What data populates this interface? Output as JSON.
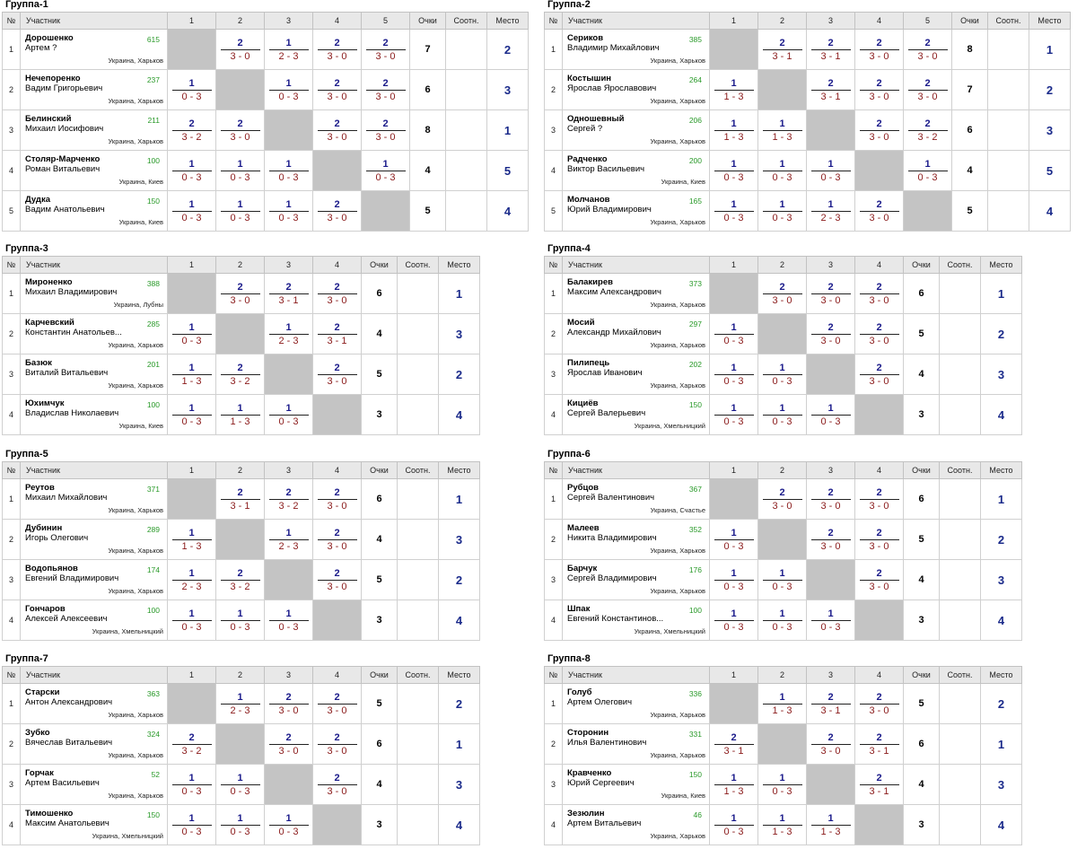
{
  "headers": {
    "no": "№",
    "player": "Участник",
    "points": "Очки",
    "ratio": "Соотн.",
    "place": "Место"
  },
  "groups": [
    {
      "title": "Группа-1",
      "cols": [
        "1",
        "2",
        "3",
        "4",
        "5"
      ],
      "rows": [
        {
          "no": "1",
          "surname": "Дорошенко",
          "name": "Артем ?",
          "rating": "615",
          "city": "Украина, Харьков",
          "cells": [
            null,
            {
              "w": "2",
              "s": "3 - 0"
            },
            {
              "w": "1",
              "s": "2 - 3"
            },
            {
              "w": "2",
              "s": "3 - 0"
            },
            {
              "w": "2",
              "s": "3 - 0"
            }
          ],
          "points": "7",
          "place": "2"
        },
        {
          "no": "2",
          "surname": "Нечепоренко",
          "name": "Вадим Григорьевич",
          "rating": "237",
          "city": "Украина, Харьков",
          "cells": [
            {
              "w": "1",
              "s": "0 - 3"
            },
            null,
            {
              "w": "1",
              "s": "0 - 3"
            },
            {
              "w": "2",
              "s": "3 - 0"
            },
            {
              "w": "2",
              "s": "3 - 0"
            }
          ],
          "points": "6",
          "place": "3"
        },
        {
          "no": "3",
          "surname": "Белинский",
          "name": "Михаил Иосифович",
          "rating": "211",
          "city": "Украина, Харьков",
          "cells": [
            {
              "w": "2",
              "s": "3 - 2"
            },
            {
              "w": "2",
              "s": "3 - 0"
            },
            null,
            {
              "w": "2",
              "s": "3 - 0"
            },
            {
              "w": "2",
              "s": "3 - 0"
            }
          ],
          "points": "8",
          "place": "1"
        },
        {
          "no": "4",
          "surname": "Столяр-Марченко",
          "name": "Роман Витальевич",
          "rating": "100",
          "city": "Украина, Киев",
          "cells": [
            {
              "w": "1",
              "s": "0 - 3"
            },
            {
              "w": "1",
              "s": "0 - 3"
            },
            {
              "w": "1",
              "s": "0 - 3"
            },
            null,
            {
              "w": "1",
              "s": "0 - 3"
            }
          ],
          "points": "4",
          "place": "5"
        },
        {
          "no": "5",
          "surname": "Дудка",
          "name": "Вадим Анатольевич",
          "rating": "150",
          "city": "Украина, Киев",
          "cells": [
            {
              "w": "1",
              "s": "0 - 3"
            },
            {
              "w": "1",
              "s": "0 - 3"
            },
            {
              "w": "1",
              "s": "0 - 3"
            },
            {
              "w": "2",
              "s": "3 - 0"
            },
            null
          ],
          "points": "5",
          "place": "4"
        }
      ]
    },
    {
      "title": "Группа-2",
      "cols": [
        "1",
        "2",
        "3",
        "4",
        "5"
      ],
      "rows": [
        {
          "no": "1",
          "surname": "Сериков",
          "name": "Владимир Михайлович",
          "rating": "385",
          "city": "Украина, Харьков",
          "cells": [
            null,
            {
              "w": "2",
              "s": "3 - 1"
            },
            {
              "w": "2",
              "s": "3 - 1"
            },
            {
              "w": "2",
              "s": "3 - 0"
            },
            {
              "w": "2",
              "s": "3 - 0"
            }
          ],
          "points": "8",
          "place": "1"
        },
        {
          "no": "2",
          "surname": "Костышин",
          "name": "Ярослав Ярославович",
          "rating": "264",
          "city": "Украина, Харьков",
          "cells": [
            {
              "w": "1",
              "s": "1 - 3"
            },
            null,
            {
              "w": "2",
              "s": "3 - 1"
            },
            {
              "w": "2",
              "s": "3 - 0"
            },
            {
              "w": "2",
              "s": "3 - 0"
            }
          ],
          "points": "7",
          "place": "2"
        },
        {
          "no": "3",
          "surname": "Одношевный",
          "name": "Сергей ?",
          "rating": "206",
          "city": "Украина, Харьков",
          "cells": [
            {
              "w": "1",
              "s": "1 - 3"
            },
            {
              "w": "1",
              "s": "1 - 3"
            },
            null,
            {
              "w": "2",
              "s": "3 - 0"
            },
            {
              "w": "2",
              "s": "3 - 2"
            }
          ],
          "points": "6",
          "place": "3"
        },
        {
          "no": "4",
          "surname": "Радченко",
          "name": "Виктор Васильевич",
          "rating": "200",
          "city": "Украина, Киев",
          "cells": [
            {
              "w": "1",
              "s": "0 - 3"
            },
            {
              "w": "1",
              "s": "0 - 3"
            },
            {
              "w": "1",
              "s": "0 - 3"
            },
            null,
            {
              "w": "1",
              "s": "0 - 3"
            }
          ],
          "points": "4",
          "place": "5"
        },
        {
          "no": "5",
          "surname": "Молчанов",
          "name": "Юрий Владимирович",
          "rating": "165",
          "city": "Украина, Харьков",
          "cells": [
            {
              "w": "1",
              "s": "0 - 3"
            },
            {
              "w": "1",
              "s": "0 - 3"
            },
            {
              "w": "1",
              "s": "2 - 3"
            },
            {
              "w": "2",
              "s": "3 - 0"
            },
            null
          ],
          "points": "5",
          "place": "4"
        }
      ]
    },
    {
      "title": "Группа-3",
      "cols": [
        "1",
        "2",
        "3",
        "4"
      ],
      "rows": [
        {
          "no": "1",
          "surname": "Мироненко",
          "name": "Михаил Владимирович",
          "rating": "388",
          "city": "Украина, Лубны",
          "cells": [
            null,
            {
              "w": "2",
              "s": "3 - 0"
            },
            {
              "w": "2",
              "s": "3 - 1"
            },
            {
              "w": "2",
              "s": "3 - 0"
            }
          ],
          "points": "6",
          "place": "1"
        },
        {
          "no": "2",
          "surname": "Карчевский",
          "name": "Константин Анатольев...",
          "rating": "285",
          "city": "Украина, Харьков",
          "cells": [
            {
              "w": "1",
              "s": "0 - 3"
            },
            null,
            {
              "w": "1",
              "s": "2 - 3"
            },
            {
              "w": "2",
              "s": "3 - 1"
            }
          ],
          "points": "4",
          "place": "3"
        },
        {
          "no": "3",
          "surname": "Базюк",
          "name": "Виталий Витальевич",
          "rating": "201",
          "city": "Украина, Харьков",
          "cells": [
            {
              "w": "1",
              "s": "1 - 3"
            },
            {
              "w": "2",
              "s": "3 - 2"
            },
            null,
            {
              "w": "2",
              "s": "3 - 0"
            }
          ],
          "points": "5",
          "place": "2"
        },
        {
          "no": "4",
          "surname": "Юхимчук",
          "name": "Владислав Николаевич",
          "rating": "100",
          "city": "Украина, Киев",
          "cells": [
            {
              "w": "1",
              "s": "0 - 3"
            },
            {
              "w": "1",
              "s": "1 - 3"
            },
            {
              "w": "1",
              "s": "0 - 3"
            },
            null
          ],
          "points": "3",
          "place": "4"
        }
      ]
    },
    {
      "title": "Группа-4",
      "cols": [
        "1",
        "2",
        "3",
        "4"
      ],
      "rows": [
        {
          "no": "1",
          "surname": "Балакирев",
          "name": "Максим Александрович",
          "rating": "373",
          "city": "Украина, Харьков",
          "cells": [
            null,
            {
              "w": "2",
              "s": "3 - 0"
            },
            {
              "w": "2",
              "s": "3 - 0"
            },
            {
              "w": "2",
              "s": "3 - 0"
            }
          ],
          "points": "6",
          "place": "1"
        },
        {
          "no": "2",
          "surname": "Мосий",
          "name": "Александр Михайлович",
          "rating": "297",
          "city": "Украина, Харьков",
          "cells": [
            {
              "w": "1",
              "s": "0 - 3"
            },
            null,
            {
              "w": "2",
              "s": "3 - 0"
            },
            {
              "w": "2",
              "s": "3 - 0"
            }
          ],
          "points": "5",
          "place": "2"
        },
        {
          "no": "3",
          "surname": "Пилипець",
          "name": "Ярослав Иванович",
          "rating": "202",
          "city": "Украина, Харьков",
          "cells": [
            {
              "w": "1",
              "s": "0 - 3"
            },
            {
              "w": "1",
              "s": "0 - 3"
            },
            null,
            {
              "w": "2",
              "s": "3 - 0"
            }
          ],
          "points": "4",
          "place": "3"
        },
        {
          "no": "4",
          "surname": "Кициёв",
          "name": "Сергей Валерьевич",
          "rating": "150",
          "city": "Украина, Хмельницкий",
          "cells": [
            {
              "w": "1",
              "s": "0 - 3"
            },
            {
              "w": "1",
              "s": "0 - 3"
            },
            {
              "w": "1",
              "s": "0 - 3"
            },
            null
          ],
          "points": "3",
          "place": "4"
        }
      ]
    },
    {
      "title": "Группа-5",
      "cols": [
        "1",
        "2",
        "3",
        "4"
      ],
      "rows": [
        {
          "no": "1",
          "surname": "Реутов",
          "name": "Михаил Михайлович",
          "rating": "371",
          "city": "Украина, Харьков",
          "cells": [
            null,
            {
              "w": "2",
              "s": "3 - 1"
            },
            {
              "w": "2",
              "s": "3 - 2"
            },
            {
              "w": "2",
              "s": "3 - 0"
            }
          ],
          "points": "6",
          "place": "1"
        },
        {
          "no": "2",
          "surname": "Дубинин",
          "name": "Игорь Олегович",
          "rating": "289",
          "city": "Украина, Харьков",
          "cells": [
            {
              "w": "1",
              "s": "1 - 3"
            },
            null,
            {
              "w": "1",
              "s": "2 - 3"
            },
            {
              "w": "2",
              "s": "3 - 0"
            }
          ],
          "points": "4",
          "place": "3"
        },
        {
          "no": "3",
          "surname": "Водопьянов",
          "name": "Евгений Владимирович",
          "rating": "174",
          "city": "Украина, Харьков",
          "cells": [
            {
              "w": "1",
              "s": "2 - 3"
            },
            {
              "w": "2",
              "s": "3 - 2"
            },
            null,
            {
              "w": "2",
              "s": "3 - 0"
            }
          ],
          "points": "5",
          "place": "2"
        },
        {
          "no": "4",
          "surname": "Гончаров",
          "name": "Алексей Алексеевич",
          "rating": "100",
          "city": "Украина, Хмельницкий",
          "cells": [
            {
              "w": "1",
              "s": "0 - 3"
            },
            {
              "w": "1",
              "s": "0 - 3"
            },
            {
              "w": "1",
              "s": "0 - 3"
            },
            null
          ],
          "points": "3",
          "place": "4"
        }
      ]
    },
    {
      "title": "Группа-6",
      "cols": [
        "1",
        "2",
        "3",
        "4"
      ],
      "rows": [
        {
          "no": "1",
          "surname": "Рубцов",
          "name": "Сергей Валентинович",
          "rating": "367",
          "city": "Украина, Счастье",
          "cells": [
            null,
            {
              "w": "2",
              "s": "3 - 0"
            },
            {
              "w": "2",
              "s": "3 - 0"
            },
            {
              "w": "2",
              "s": "3 - 0"
            }
          ],
          "points": "6",
          "place": "1"
        },
        {
          "no": "2",
          "surname": "Малеев",
          "name": "Никита Владимирович",
          "rating": "352",
          "city": "Украина, Харьков",
          "cells": [
            {
              "w": "1",
              "s": "0 - 3"
            },
            null,
            {
              "w": "2",
              "s": "3 - 0"
            },
            {
              "w": "2",
              "s": "3 - 0"
            }
          ],
          "points": "5",
          "place": "2"
        },
        {
          "no": "3",
          "surname": "Барчук",
          "name": "Сергей Владимирович",
          "rating": "176",
          "city": "Украина, Харьков",
          "cells": [
            {
              "w": "1",
              "s": "0 - 3"
            },
            {
              "w": "1",
              "s": "0 - 3"
            },
            null,
            {
              "w": "2",
              "s": "3 - 0"
            }
          ],
          "points": "4",
          "place": "3"
        },
        {
          "no": "4",
          "surname": "Шпак",
          "name": "Евгений Константинов...",
          "rating": "100",
          "city": "Украина, Хмельницкий",
          "cells": [
            {
              "w": "1",
              "s": "0 - 3"
            },
            {
              "w": "1",
              "s": "0 - 3"
            },
            {
              "w": "1",
              "s": "0 - 3"
            },
            null
          ],
          "points": "3",
          "place": "4"
        }
      ]
    },
    {
      "title": "Группа-7",
      "cols": [
        "1",
        "2",
        "3",
        "4"
      ],
      "rows": [
        {
          "no": "1",
          "surname": "Старски",
          "name": "Антон Александрович",
          "rating": "363",
          "city": "Украина, Харьков",
          "cells": [
            null,
            {
              "w": "1",
              "s": "2 - 3"
            },
            {
              "w": "2",
              "s": "3 - 0"
            },
            {
              "w": "2",
              "s": "3 - 0"
            }
          ],
          "points": "5",
          "place": "2"
        },
        {
          "no": "2",
          "surname": "Зубко",
          "name": "Вячеслав Витальевич",
          "rating": "324",
          "city": "Украина, Харьков",
          "cells": [
            {
              "w": "2",
              "s": "3 - 2"
            },
            null,
            {
              "w": "2",
              "s": "3 - 0"
            },
            {
              "w": "2",
              "s": "3 - 0"
            }
          ],
          "points": "6",
          "place": "1"
        },
        {
          "no": "3",
          "surname": "Горчак",
          "name": "Артем Васильевич",
          "rating": "52",
          "city": "Украина, Харьков",
          "cells": [
            {
              "w": "1",
              "s": "0 - 3"
            },
            {
              "w": "1",
              "s": "0 - 3"
            },
            null,
            {
              "w": "2",
              "s": "3 - 0"
            }
          ],
          "points": "4",
          "place": "3"
        },
        {
          "no": "4",
          "surname": "Тимошенко",
          "name": "Максим Анатольевич",
          "rating": "150",
          "city": "Украина, Хмельницкий",
          "cells": [
            {
              "w": "1",
              "s": "0 - 3"
            },
            {
              "w": "1",
              "s": "0 - 3"
            },
            {
              "w": "1",
              "s": "0 - 3"
            },
            null
          ],
          "points": "3",
          "place": "4"
        }
      ]
    },
    {
      "title": "Группа-8",
      "cols": [
        "1",
        "2",
        "3",
        "4"
      ],
      "rows": [
        {
          "no": "1",
          "surname": "Голуб",
          "name": "Артем Олегович",
          "rating": "336",
          "city": "Украина, Харьков",
          "cells": [
            null,
            {
              "w": "1",
              "s": "1 - 3"
            },
            {
              "w": "2",
              "s": "3 - 1"
            },
            {
              "w": "2",
              "s": "3 - 0"
            }
          ],
          "points": "5",
          "place": "2"
        },
        {
          "no": "2",
          "surname": "Сторонин",
          "name": "Илья Валентинович",
          "rating": "331",
          "city": "Украина, Харьков",
          "cells": [
            {
              "w": "2",
              "s": "3 - 1"
            },
            null,
            {
              "w": "2",
              "s": "3 - 0"
            },
            {
              "w": "2",
              "s": "3 - 1"
            }
          ],
          "points": "6",
          "place": "1"
        },
        {
          "no": "3",
          "surname": "Кравченко",
          "name": "Юрий Сергеевич",
          "rating": "150",
          "city": "Украина, Киев",
          "cells": [
            {
              "w": "1",
              "s": "1 - 3"
            },
            {
              "w": "1",
              "s": "0 - 3"
            },
            null,
            {
              "w": "2",
              "s": "3 - 1"
            }
          ],
          "points": "4",
          "place": "3"
        },
        {
          "no": "4",
          "surname": "Зезюлин",
          "name": "Артем Витальевич",
          "rating": "46",
          "city": "Украина, Харьков",
          "cells": [
            {
              "w": "1",
              "s": "0 - 3"
            },
            {
              "w": "1",
              "s": "1 - 3"
            },
            {
              "w": "1",
              "s": "1 - 3"
            },
            null
          ],
          "points": "3",
          "place": "4"
        }
      ]
    }
  ]
}
